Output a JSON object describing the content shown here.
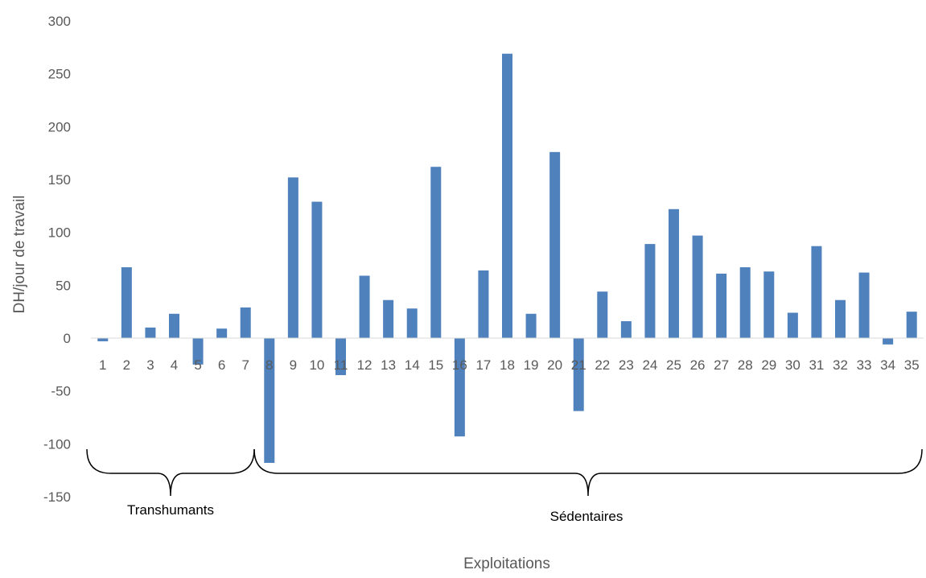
{
  "chart_data": {
    "type": "bar",
    "title": "",
    "xlabel": "Exploitations",
    "ylabel": "DH/jour de travail",
    "ylim": [
      -150,
      300
    ],
    "yticks": [
      300,
      250,
      200,
      150,
      100,
      50,
      0,
      -50,
      -100,
      -150
    ],
    "categories": [
      "1",
      "2",
      "3",
      "4",
      "5",
      "6",
      "7",
      "8",
      "9",
      "10",
      "11",
      "12",
      "13",
      "14",
      "15",
      "16",
      "17",
      "18",
      "19",
      "20",
      "21",
      "22",
      "23",
      "24",
      "25",
      "26",
      "27",
      "28",
      "29",
      "30",
      "31",
      "32",
      "33",
      "34",
      "35"
    ],
    "series": [
      {
        "values": [
          -3,
          67,
          10,
          23,
          -25,
          9,
          29,
          -118,
          152,
          129,
          -35,
          59,
          36,
          28,
          162,
          -93,
          64,
          269,
          23,
          176,
          -69,
          44,
          16,
          89,
          122,
          97,
          61,
          67,
          63,
          24,
          87,
          36,
          62,
          -6,
          25
        ],
        "color": "#4f81bd"
      }
    ],
    "grid": false,
    "legend": "none",
    "annotations": [
      {
        "label": "Transhumants",
        "from_category": "1",
        "to_category": "7"
      },
      {
        "label": "Sédentaires",
        "from_category": "8",
        "to_category": "35"
      }
    ]
  }
}
